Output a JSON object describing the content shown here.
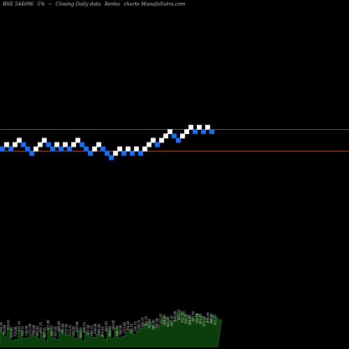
{
  "header": {
    "symbol": "BSE 544096",
    "brick": "5%",
    "separator": "--",
    "caption": "Closing Daily data",
    "chart_kind": "Renko",
    "site": "charts MunafaSutra.com"
  },
  "colors": {
    "background": "#000000",
    "up_brick": "#ffffff",
    "down_brick": "#1f6fe6",
    "level_line": "#a0522d",
    "volume_fill": "#0c3d0c",
    "volume_outline": "#2e8b2e",
    "volume_label": "#d8d8d8"
  },
  "chart_data": {
    "type": "renko",
    "title": "BSE 544096 5% -- Closing Daily data Renko charts MunafaSutra.com",
    "bricks": [
      {
        "dir": "down",
        "level": 0
      },
      {
        "dir": "up",
        "level": 1
      },
      {
        "dir": "down",
        "level": 0
      },
      {
        "dir": "up",
        "level": 1
      },
      {
        "dir": "up",
        "level": 2
      },
      {
        "dir": "down",
        "level": 1
      },
      {
        "dir": "down",
        "level": 0
      },
      {
        "dir": "down",
        "level": -1
      },
      {
        "dir": "up",
        "level": 0
      },
      {
        "dir": "up",
        "level": 1
      },
      {
        "dir": "up",
        "level": 2
      },
      {
        "dir": "down",
        "level": 1
      },
      {
        "dir": "down",
        "level": 0
      },
      {
        "dir": "up",
        "level": 1
      },
      {
        "dir": "down",
        "level": 0
      },
      {
        "dir": "up",
        "level": 1
      },
      {
        "dir": "down",
        "level": 0
      },
      {
        "dir": "up",
        "level": 1
      },
      {
        "dir": "up",
        "level": 2
      },
      {
        "dir": "down",
        "level": 1
      },
      {
        "dir": "down",
        "level": 0
      },
      {
        "dir": "down",
        "level": -1
      },
      {
        "dir": "up",
        "level": 0
      },
      {
        "dir": "up",
        "level": 1
      },
      {
        "dir": "down",
        "level": 0
      },
      {
        "dir": "down",
        "level": -1
      },
      {
        "dir": "down",
        "level": -2
      },
      {
        "dir": "up",
        "level": -1
      },
      {
        "dir": "up",
        "level": 0
      },
      {
        "dir": "down",
        "level": -1
      },
      {
        "dir": "up",
        "level": 0
      },
      {
        "dir": "down",
        "level": -1
      },
      {
        "dir": "up",
        "level": 0
      },
      {
        "dir": "down",
        "level": -1
      },
      {
        "dir": "up",
        "level": 0
      },
      {
        "dir": "up",
        "level": 1
      },
      {
        "dir": "up",
        "level": 2
      },
      {
        "dir": "down",
        "level": 1
      },
      {
        "dir": "up",
        "level": 2
      },
      {
        "dir": "up",
        "level": 3
      },
      {
        "dir": "up",
        "level": 4
      },
      {
        "dir": "down",
        "level": 3
      },
      {
        "dir": "down",
        "level": 2
      },
      {
        "dir": "up",
        "level": 3
      },
      {
        "dir": "up",
        "level": 4
      },
      {
        "dir": "up",
        "level": 5
      },
      {
        "dir": "down",
        "level": 4
      },
      {
        "dir": "up",
        "level": 5
      },
      {
        "dir": "down",
        "level": 4
      },
      {
        "dir": "up",
        "level": 5
      },
      {
        "dir": "down",
        "level": 4
      }
    ],
    "level_lines": [
      5,
      0
    ],
    "volume_labels": [
      "704.20",
      "704.80",
      "710.45",
      "723.65",
      "718.00",
      "737.10",
      "743.75",
      "736.00",
      "711.60",
      "700.00",
      "685.00",
      "692.25",
      "683.95",
      "671.80",
      "682.55",
      "703.30",
      "680.00",
      "705.00",
      "717.30",
      "713.25",
      "700.00",
      "695.00",
      "684.85",
      "690.55",
      "677.00",
      "690.10",
      "658.00",
      "660.00",
      "674.65",
      "682.65",
      "684.60",
      "703.05",
      "686.35",
      "700.95",
      "713.00",
      "704.30",
      "714.25",
      "736.75",
      "748.75",
      "766.75",
      "781.35",
      "767.05",
      "760.00",
      "785.00",
      "822.05",
      "846.00",
      "821.40",
      "832.45",
      "860.00",
      "873.70",
      "911.35",
      "925.75",
      "960.00",
      "944.70",
      "934.00",
      "953.40",
      "974.30",
      "940.05",
      "966.10",
      "971.25"
    ],
    "volume_values": [
      0.35,
      0.25,
      0.45,
      0.15,
      0.18,
      0.4,
      0.2,
      0.22,
      0.3,
      0.25,
      0.2,
      0.35,
      0.15,
      0.45,
      0.22,
      0.18,
      0.4,
      0.3,
      0.28,
      0.25,
      0.2,
      0.38,
      0.15,
      0.35,
      0.25,
      0.22,
      0.3,
      0.28,
      0.18,
      0.4,
      0.2,
      0.45,
      0.22,
      0.25,
      0.35,
      0.4,
      0.3,
      0.38,
      0.45,
      0.55,
      0.6,
      0.5,
      0.45,
      0.52,
      0.7,
      0.65,
      0.58,
      0.62,
      0.8,
      0.85,
      0.75,
      0.7,
      0.65,
      0.78,
      0.72,
      0.68,
      0.6,
      0.75,
      0.7,
      0.65
    ]
  }
}
